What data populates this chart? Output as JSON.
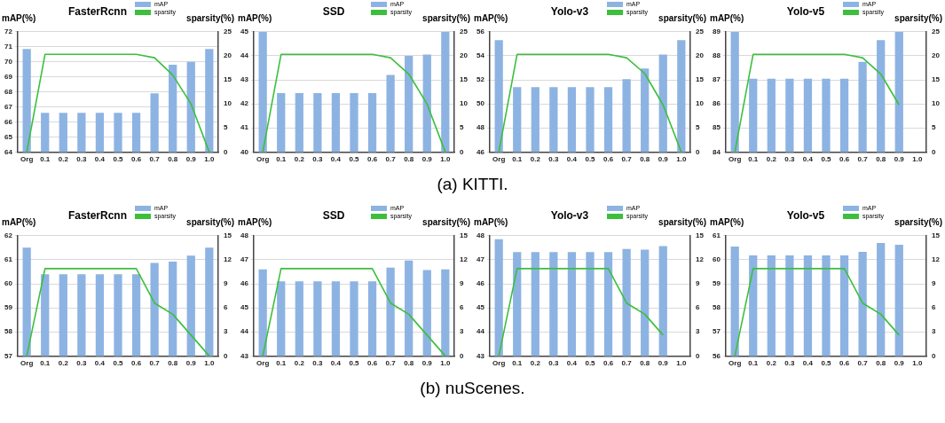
{
  "chart_data": [
    {
      "type": "bar",
      "title": "FasterRcnn",
      "ylabel": "mAP(%)",
      "y2label": "sparsity(%)",
      "annotations": [
        "(a) KITTI."
      ],
      "categories": [
        "Org",
        "0.1",
        "0.2",
        "0.3",
        "0.4",
        "0.5",
        "0.6",
        "0.7",
        "0.8",
        "0.9",
        "1.0"
      ],
      "series": [
        {
          "name": "mAP",
          "color": "#8db3e2",
          "values": [
            70.85,
            66.6,
            66.6,
            66.6,
            66.6,
            66.6,
            66.6,
            67.9,
            69.8,
            70.0,
            70.85
          ]
        },
        {
          "name": "sparsity",
          "type": "line",
          "axis": "y2",
          "color": "#3cbf3c",
          "values": [
            0,
            20.3,
            20.3,
            20.3,
            20.3,
            20.3,
            20.3,
            19.6,
            16,
            10,
            0
          ]
        }
      ],
      "ylim": [
        64,
        72
      ],
      "yticks": [
        64,
        65,
        66,
        67,
        68,
        69,
        70,
        71,
        72
      ],
      "y2lim": [
        0,
        25
      ],
      "y2ticks": [
        0,
        5,
        10,
        15,
        20,
        25
      ],
      "grid": "y",
      "legend": "top right",
      "marker": "none"
    },
    {
      "type": "bar",
      "title": "SSD",
      "ylabel": "mAP(%)",
      "y2label": "sparsity(%)",
      "categories": [
        "Org",
        "0.1",
        "0.2",
        "0.3",
        "0.4",
        "0.5",
        "0.6",
        "0.7",
        "0.8",
        "0.9",
        "1.0"
      ],
      "series": [
        {
          "name": "mAP",
          "color": "#8db3e2",
          "values": [
            45,
            42.45,
            42.45,
            42.45,
            42.45,
            42.45,
            42.45,
            43.2,
            44.0,
            44.05,
            45
          ]
        },
        {
          "name": "sparsity",
          "type": "line",
          "axis": "y2",
          "color": "#3cbf3c",
          "values": [
            0,
            20.3,
            20.3,
            20.3,
            20.3,
            20.3,
            20.3,
            19.6,
            16.2,
            10,
            0
          ]
        }
      ],
      "ylim": [
        40,
        45
      ],
      "yticks": [
        40,
        41,
        42,
        43,
        44,
        45
      ],
      "y2lim": [
        0,
        25
      ],
      "y2ticks": [
        0,
        5,
        10,
        15,
        20,
        25
      ],
      "grid": "y",
      "legend": "top right",
      "marker": "none"
    },
    {
      "type": "bar",
      "title": "Yolo-v3",
      "ylabel": "mAP(%)",
      "y2label": "sparsity(%)",
      "categories": [
        "Org",
        "0.1",
        "0.2",
        "0.3",
        "0.4",
        "0.5",
        "0.6",
        "0.7",
        "0.8",
        "0.9",
        "1.0"
      ],
      "series": [
        {
          "name": "mAP",
          "color": "#8db3e2",
          "values": [
            55.3,
            51.4,
            51.4,
            51.4,
            51.4,
            51.4,
            51.4,
            52.05,
            52.95,
            54.1,
            55.3
          ]
        },
        {
          "name": "sparsity",
          "type": "line",
          "axis": "y2",
          "color": "#3cbf3c",
          "values": [
            0,
            20.3,
            20.3,
            20.3,
            20.3,
            20.3,
            20.3,
            19.6,
            16.3,
            9.8,
            0
          ]
        }
      ],
      "ylim": [
        46,
        56
      ],
      "yticks": [
        46,
        48,
        50,
        52,
        54,
        56
      ],
      "y2lim": [
        0,
        25
      ],
      "y2ticks": [
        0,
        5,
        10,
        15,
        20,
        25
      ],
      "grid": "y",
      "legend": "top right",
      "marker": "none"
    },
    {
      "type": "bar",
      "title": "Yolo-v5",
      "ylabel": "mAP(%)",
      "y2label": "sparsity(%)",
      "categories": [
        "Org",
        "0.1",
        "0.2",
        "0.3",
        "0.4",
        "0.5",
        "0.6",
        "0.7",
        "0.8",
        "0.9",
        "1.0"
      ],
      "series": [
        {
          "name": "mAP",
          "color": "#8db3e2",
          "values": [
            89,
            87.05,
            87.05,
            87.05,
            87.05,
            87.05,
            87.05,
            87.75,
            88.65,
            89,
            null
          ]
        },
        {
          "name": "sparsity",
          "type": "line",
          "axis": "y2",
          "color": "#3cbf3c",
          "values": [
            0,
            20.3,
            20.3,
            20.3,
            20.3,
            20.3,
            20.3,
            19.6,
            16.2,
            9.8,
            null
          ]
        }
      ],
      "ylim": [
        84,
        89
      ],
      "yticks": [
        84,
        85,
        86,
        87,
        88,
        89
      ],
      "y2lim": [
        0,
        25
      ],
      "y2ticks": [
        0,
        5,
        10,
        15,
        20,
        25
      ],
      "grid": "y",
      "legend": "top right",
      "marker": "none"
    },
    {
      "type": "bar",
      "title": "FasterRcnn",
      "ylabel": "mAP(%)",
      "y2label": "sparsity(%)",
      "annotations": [
        "(b) nuScenes."
      ],
      "categories": [
        "Org",
        "0.1",
        "0.2",
        "0.3",
        "0.4",
        "0.5",
        "0.6",
        "0.7",
        "0.8",
        "0.9",
        "1.0"
      ],
      "series": [
        {
          "name": "mAP",
          "color": "#8db3e2",
          "values": [
            61.5,
            60.4,
            60.4,
            60.4,
            60.4,
            60.4,
            60.4,
            60.87,
            60.92,
            61.17,
            61.5
          ]
        },
        {
          "name": "sparsity",
          "type": "line",
          "axis": "y2",
          "color": "#3cbf3c",
          "values": [
            0,
            10.9,
            10.9,
            10.9,
            10.9,
            10.9,
            10.9,
            6.6,
            5.2,
            2.6,
            0
          ]
        }
      ],
      "ylim": [
        57,
        62
      ],
      "yticks": [
        57,
        58,
        59,
        60,
        61,
        62
      ],
      "y2lim": [
        0,
        15
      ],
      "y2ticks": [
        0,
        3,
        6,
        9,
        12,
        15
      ],
      "grid": "y",
      "legend": "top right",
      "marker": "none"
    },
    {
      "type": "bar",
      "title": "SSD",
      "ylabel": "mAP(%)",
      "y2label": "sparsity(%)",
      "categories": [
        "Org",
        "0.1",
        "0.2",
        "0.3",
        "0.4",
        "0.5",
        "0.6",
        "0.7",
        "0.8",
        "0.9",
        "1.0"
      ],
      "series": [
        {
          "name": "mAP",
          "color": "#8db3e2",
          "values": [
            46.6,
            46.1,
            46.1,
            46.1,
            46.1,
            46.1,
            46.1,
            46.67,
            46.97,
            46.57,
            46.6
          ]
        },
        {
          "name": "sparsity",
          "type": "line",
          "axis": "y2",
          "color": "#3cbf3c",
          "values": [
            0,
            10.9,
            10.9,
            10.9,
            10.9,
            10.9,
            10.9,
            6.6,
            5.2,
            2.6,
            0
          ]
        }
      ],
      "ylim": [
        43,
        48
      ],
      "yticks": [
        43,
        44,
        45,
        46,
        47,
        48
      ],
      "y2lim": [
        0,
        15
      ],
      "y2ticks": [
        0,
        3,
        6,
        9,
        12,
        15
      ],
      "grid": "y",
      "legend": "top right",
      "marker": "none"
    },
    {
      "type": "bar",
      "title": "Yolo-v3",
      "ylabel": "mAP(%)",
      "y2label": "sparsity(%)",
      "categories": [
        "Org",
        "0.1",
        "0.2",
        "0.3",
        "0.4",
        "0.5",
        "0.6",
        "0.7",
        "0.8",
        "0.9",
        "1.0"
      ],
      "series": [
        {
          "name": "mAP",
          "color": "#8db3e2",
          "values": [
            47.85,
            47.32,
            47.32,
            47.32,
            47.32,
            47.32,
            47.32,
            47.45,
            47.42,
            47.57,
            null
          ]
        },
        {
          "name": "sparsity",
          "type": "line",
          "axis": "y2",
          "color": "#3cbf3c",
          "values": [
            0,
            10.9,
            10.9,
            10.9,
            10.9,
            10.9,
            10.9,
            6.6,
            5.2,
            2.6,
            null
          ]
        }
      ],
      "ylim": [
        43,
        48
      ],
      "yticks": [
        43,
        44,
        45,
        46,
        47,
        48
      ],
      "y2lim": [
        0,
        15
      ],
      "y2ticks": [
        0,
        3,
        6,
        9,
        12,
        15
      ],
      "grid": "y",
      "legend": "top right",
      "marker": "none"
    },
    {
      "type": "bar",
      "title": "Yolo-v5",
      "ylabel": "mAP(%)",
      "y2label": "sparsity(%)",
      "categories": [
        "Org",
        "0.1",
        "0.2",
        "0.3",
        "0.4",
        "0.5",
        "0.6",
        "0.7",
        "0.8",
        "0.9",
        "1.0"
      ],
      "series": [
        {
          "name": "mAP",
          "color": "#8db3e2",
          "values": [
            60.55,
            60.18,
            60.18,
            60.18,
            60.18,
            60.18,
            60.18,
            60.33,
            60.7,
            60.62,
            null
          ]
        },
        {
          "name": "sparsity",
          "type": "line",
          "axis": "y2",
          "color": "#3cbf3c",
          "values": [
            0,
            10.9,
            10.9,
            10.9,
            10.9,
            10.9,
            10.9,
            6.6,
            5.2,
            2.6,
            null
          ]
        }
      ],
      "ylim": [
        56,
        61
      ],
      "yticks": [
        56,
        57,
        58,
        59,
        60,
        61
      ],
      "y2lim": [
        0,
        15
      ],
      "y2ticks": [
        0,
        3,
        6,
        9,
        12,
        15
      ],
      "grid": "y",
      "legend": "top right",
      "marker": "none"
    }
  ]
}
